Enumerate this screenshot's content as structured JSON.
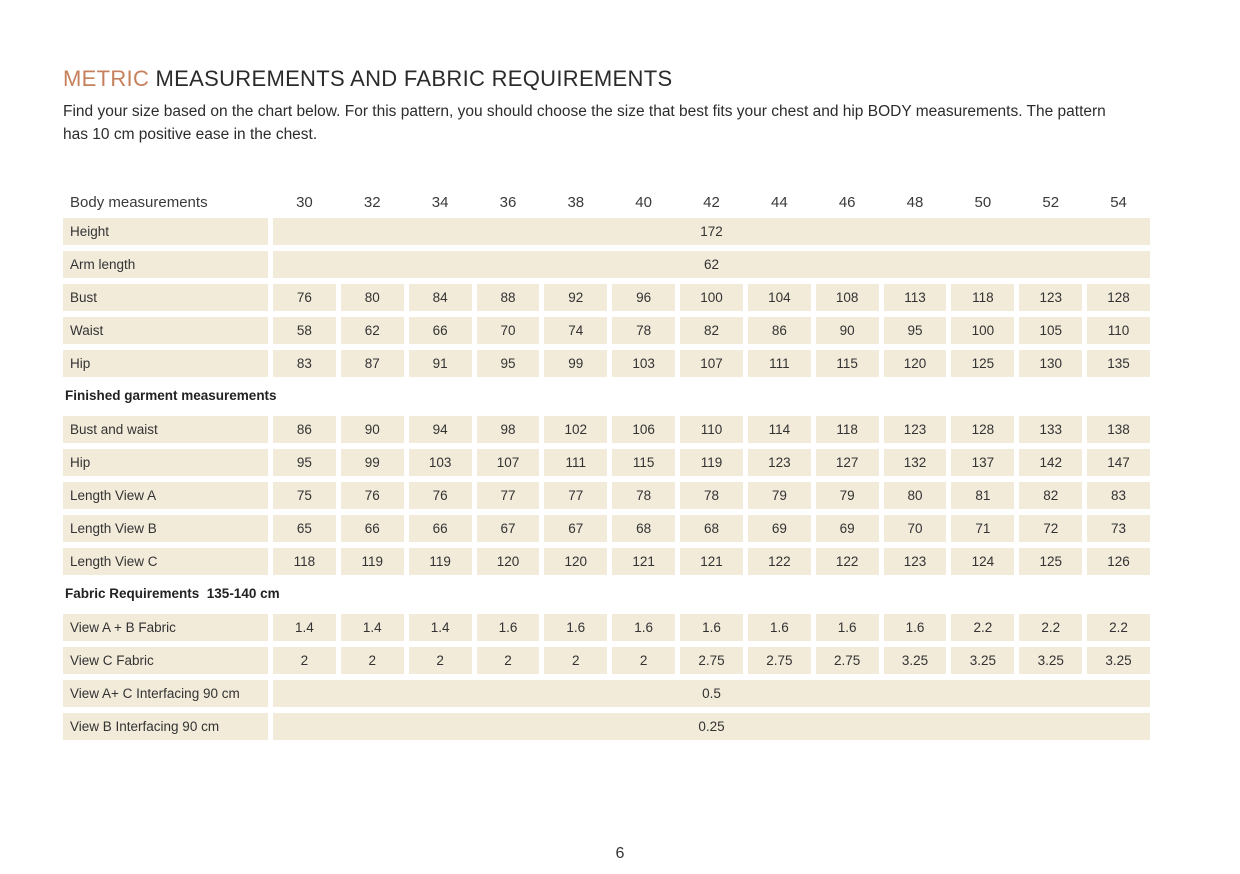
{
  "colors": {
    "accent": "#c5815c",
    "cell_bg": "#f2ebda",
    "text": "#2d2d2d"
  },
  "header": {
    "title_accent": "METRIC",
    "title_rest": " MEASUREMENTS AND FABRIC REQUIREMENTS",
    "intro": "Find your size based on the chart below. For this pattern, you should choose the size that best fits your chest and hip BODY measurements. The pattern has 10 cm positive ease in the chest."
  },
  "table": {
    "header": {
      "label": "Body measurements",
      "sizes": [
        "30",
        "32",
        "34",
        "36",
        "38",
        "40",
        "42",
        "44",
        "46",
        "48",
        "50",
        "52",
        "54"
      ]
    },
    "rows": [
      {
        "kind": "span",
        "label": "Height",
        "value": "172"
      },
      {
        "kind": "span",
        "label": "Arm length",
        "value": "62"
      },
      {
        "kind": "cells",
        "label": "Bust",
        "values": [
          "76",
          "80",
          "84",
          "88",
          "92",
          "96",
          "100",
          "104",
          "108",
          "113",
          "118",
          "123",
          "128"
        ]
      },
      {
        "kind": "cells",
        "label": "Waist",
        "values": [
          "58",
          "62",
          "66",
          "70",
          "74",
          "78",
          "82",
          "86",
          "90",
          "95",
          "100",
          "105",
          "110"
        ]
      },
      {
        "kind": "cells",
        "label": "Hip",
        "values": [
          "83",
          "87",
          "91",
          "95",
          "99",
          "103",
          "107",
          "111",
          "115",
          "120",
          "125",
          "130",
          "135"
        ]
      },
      {
        "kind": "section",
        "label": "Finished garment measurements"
      },
      {
        "kind": "cells",
        "label": "Bust and waist",
        "values": [
          "86",
          "90",
          "94",
          "98",
          "102",
          "106",
          "110",
          "114",
          "118",
          "123",
          "128",
          "133",
          "138"
        ]
      },
      {
        "kind": "cells",
        "label": "Hip",
        "values": [
          "95",
          "99",
          "103",
          "107",
          "111",
          "115",
          "119",
          "123",
          "127",
          "132",
          "137",
          "142",
          "147"
        ]
      },
      {
        "kind": "cells",
        "label": "Length View A",
        "values": [
          "75",
          "76",
          "76",
          "77",
          "77",
          "78",
          "78",
          "79",
          "79",
          "80",
          "81",
          "82",
          "83"
        ]
      },
      {
        "kind": "cells",
        "label": "Length View B",
        "values": [
          "65",
          "66",
          "66",
          "67",
          "67",
          "68",
          "68",
          "69",
          "69",
          "70",
          "71",
          "72",
          "73"
        ]
      },
      {
        "kind": "cells",
        "label": "Length View C",
        "values": [
          "118",
          "119",
          "119",
          "120",
          "120",
          "121",
          "121",
          "122",
          "122",
          "123",
          "124",
          "125",
          "126"
        ]
      },
      {
        "kind": "section",
        "label": "Fabric Requirements  135-140 cm"
      },
      {
        "kind": "cells",
        "label": "View A + B Fabric",
        "values": [
          "1.4",
          "1.4",
          "1.4",
          "1.6",
          "1.6",
          "1.6",
          "1.6",
          "1.6",
          "1.6",
          "1.6",
          "2.2",
          "2.2",
          "2.2"
        ]
      },
      {
        "kind": "cells",
        "label": "View C Fabric",
        "values": [
          "2",
          "2",
          "2",
          "2",
          "2",
          "2",
          "2.75",
          "2.75",
          "2.75",
          "3.25",
          "3.25",
          "3.25",
          "3.25"
        ]
      },
      {
        "kind": "span",
        "label": "View A+ C Interfacing 90 cm",
        "value": "0.5"
      },
      {
        "kind": "span",
        "label": "View B Interfacing 90 cm",
        "value": "0.25"
      }
    ]
  },
  "footer": {
    "page_number": "6"
  }
}
